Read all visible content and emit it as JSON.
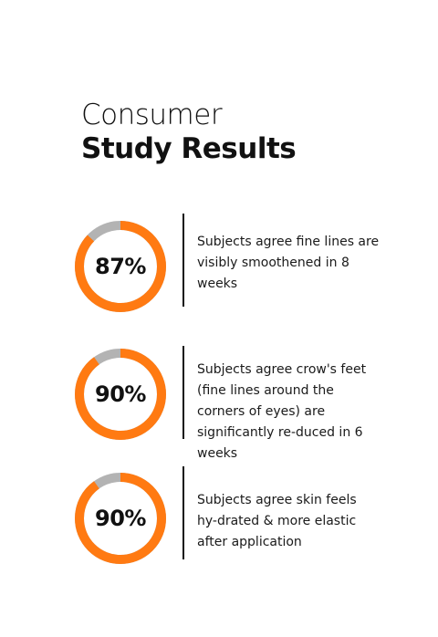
{
  "title": {
    "line1": "Consumer",
    "line2": "Study Results"
  },
  "colors": {
    "accent": "#FF7A12",
    "track": "#B3B3B3",
    "text": "#111111"
  },
  "stats": [
    {
      "value_label": "87%",
      "percent": 87,
      "description": "Subjects agree fine lines are visibly smoothened in 8 weeks"
    },
    {
      "value_label": "90%",
      "percent": 90,
      "description": "Subjects agree crow's feet (fine lines around the corners of eyes) are significantly re-duced in 6 weeks"
    },
    {
      "value_label": "90%",
      "percent": 90,
      "description": "Subjects agree skin feels hy-drated & more elastic after application"
    }
  ]
}
